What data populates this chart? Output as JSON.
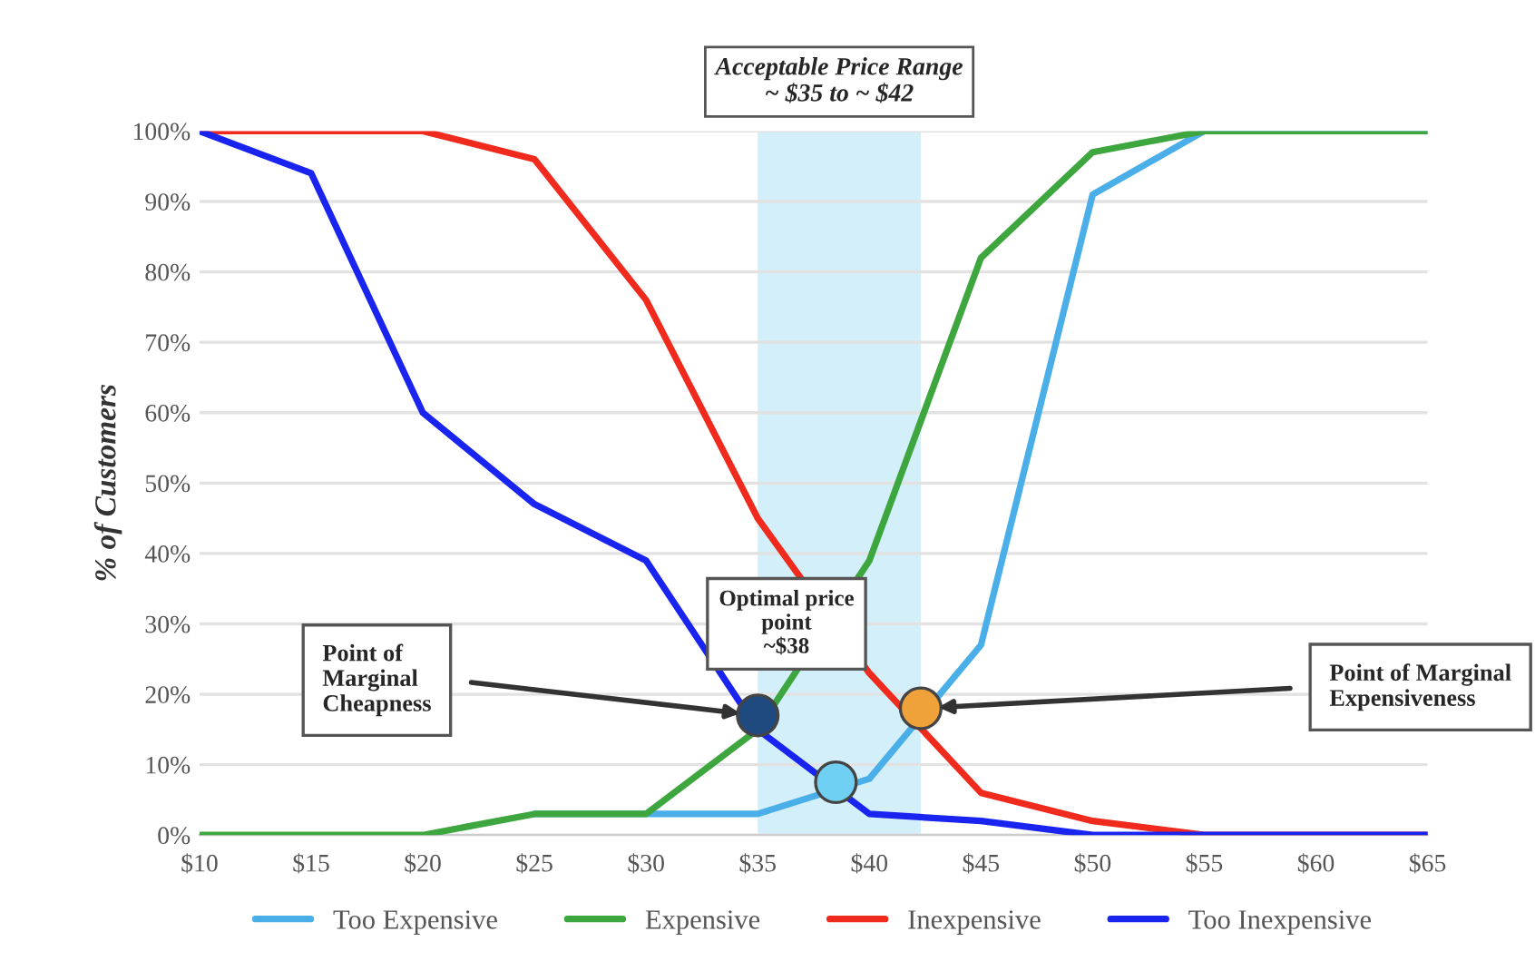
{
  "chart_data": {
    "type": "line",
    "ylabel": "% of Customers",
    "x": [
      10,
      15,
      20,
      25,
      30,
      35,
      40,
      45,
      50,
      55,
      60,
      65
    ],
    "series": [
      {
        "name": "Too Expensive",
        "color": "#4aaee8",
        "values": [
          null,
          null,
          null,
          3,
          3,
          3,
          8,
          27,
          91,
          100,
          100,
          100
        ]
      },
      {
        "name": "Expensive",
        "color": "#3ea63e",
        "values": [
          0,
          0,
          0,
          3,
          3,
          15,
          39,
          82,
          97,
          100,
          100,
          100
        ]
      },
      {
        "name": "Inexpensive",
        "color": "#f02a1c",
        "values": [
          100,
          100,
          100,
          96,
          76,
          45,
          23,
          6,
          2,
          0,
          0,
          0
        ]
      },
      {
        "name": "Too Inexpensive",
        "color": "#1a24f0",
        "values": [
          100,
          94,
          60,
          47,
          39,
          15,
          3,
          2,
          0,
          0,
          0,
          0
        ]
      },
      {
        "type": "scatter",
        "marker": "circle",
        "color": "#1f4a80",
        "x": [
          35
        ],
        "values": [
          17
        ]
      },
      {
        "type": "scatter",
        "marker": "circle",
        "color": "#6fd0f4",
        "x": [
          38.5
        ],
        "values": [
          7.5
        ]
      },
      {
        "type": "scatter",
        "marker": "circle",
        "color": "#f0a23a",
        "x": [
          42.3
        ],
        "values": [
          18
        ]
      }
    ],
    "xlim": [
      10,
      65
    ],
    "xticks": [
      {
        "value": 10,
        "label": "$10"
      },
      {
        "value": 15,
        "label": "$15"
      },
      {
        "value": 20,
        "label": "$20"
      },
      {
        "value": 25,
        "label": "$25"
      },
      {
        "value": 30,
        "label": "$30"
      },
      {
        "value": 35,
        "label": "$35"
      },
      {
        "value": 40,
        "label": "$40"
      },
      {
        "value": 45,
        "label": "$45"
      },
      {
        "value": 50,
        "label": "$50"
      },
      {
        "value": 55,
        "label": "$55"
      },
      {
        "value": 60,
        "label": "$60"
      },
      {
        "value": 65,
        "label": "$65"
      }
    ],
    "ylim": [
      0,
      100
    ],
    "yticks": [
      {
        "value": 0,
        "label": "0%"
      },
      {
        "value": 10,
        "label": "10%"
      },
      {
        "value": 20,
        "label": "20%"
      },
      {
        "value": 30,
        "label": "30%"
      },
      {
        "value": 40,
        "label": "40%"
      },
      {
        "value": 50,
        "label": "50%"
      },
      {
        "value": 60,
        "label": "60%"
      },
      {
        "value": 70,
        "label": "70%"
      },
      {
        "value": 80,
        "label": "80%"
      },
      {
        "value": 90,
        "label": "90%"
      },
      {
        "value": 100,
        "label": "100%"
      }
    ],
    "bands": [
      {
        "axis": "x",
        "from": 35,
        "to": 42.3,
        "label": "Acceptable Price Range\n~ $35 to ~ $42",
        "color": "#d3effa"
      }
    ],
    "annotations": [
      "Point of\nMarginal\nCheapness",
      "Optimal price\npoint\n~$38",
      "Point of Marginal\nExpensiveness"
    ],
    "grid": "y",
    "legend": "bottom",
    "marker": "none",
    "line_style": "solid"
  }
}
